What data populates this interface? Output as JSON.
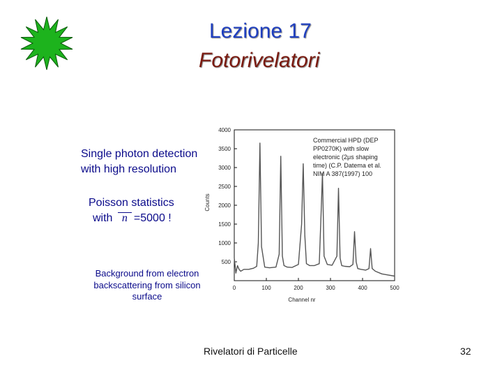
{
  "slide": {
    "title": "Lezione 17",
    "subtitle": "Fotorivelatori",
    "left_text": [
      "Single photon detection",
      "with high resolution"
    ],
    "poisson_line1": "Poisson statistics",
    "poisson_with": "with",
    "poisson_symbol": "n",
    "poisson_value": "=5000 !",
    "background_note": "Background from electron backscattering from silicon surface",
    "caption": "Commercial HPD (DEP PP0270K) with slow electronic (2μs shaping time) (C.P. Datema et al. NIM A 387(1997) 100",
    "footer": "Rivelatori di Particelle",
    "page_number": "32"
  },
  "colors": {
    "title": "#1f3fbf",
    "subtitle": "#7a1a10",
    "body_text": "#0a0a8a",
    "starburst": "#1db31d",
    "arrow": "#2a9a9a"
  },
  "icons": {
    "starburst": "green-starburst-icon"
  },
  "chart_data": {
    "type": "line",
    "xlabel": "Channel nr",
    "ylabel": "Counts",
    "xlim": [
      0,
      500
    ],
    "ylim": [
      0,
      4000
    ],
    "xticks": [
      "0",
      "100",
      "200",
      "300",
      "400",
      "500"
    ],
    "yticks": [
      "500",
      "1000",
      "1500",
      "2000",
      "2500",
      "3000",
      "3500",
      "4000"
    ],
    "grid": false,
    "series": [
      {
        "x": [
          0,
          5,
          10,
          15,
          20,
          30,
          45,
          60,
          70,
          75,
          80,
          85,
          95,
          110,
          130,
          140,
          145,
          150,
          155,
          165,
          180,
          200,
          210,
          215,
          220,
          225,
          235,
          250,
          265,
          270,
          275,
          280,
          290,
          305,
          320,
          325,
          330,
          335,
          345,
          360,
          370,
          375,
          380,
          385,
          395,
          410,
          420,
          425,
          430,
          440,
          460,
          480,
          500
        ],
        "y": [
          600,
          200,
          400,
          300,
          250,
          300,
          300,
          330,
          380,
          1000,
          3650,
          900,
          360,
          340,
          360,
          700,
          3300,
          650,
          400,
          360,
          350,
          430,
          1500,
          3100,
          1200,
          450,
          400,
          400,
          450,
          1600,
          2850,
          650,
          430,
          410,
          650,
          2450,
          600,
          400,
          380,
          370,
          430,
          1300,
          500,
          320,
          300,
          280,
          320,
          850,
          320,
          250,
          180,
          150,
          120
        ]
      }
    ]
  }
}
